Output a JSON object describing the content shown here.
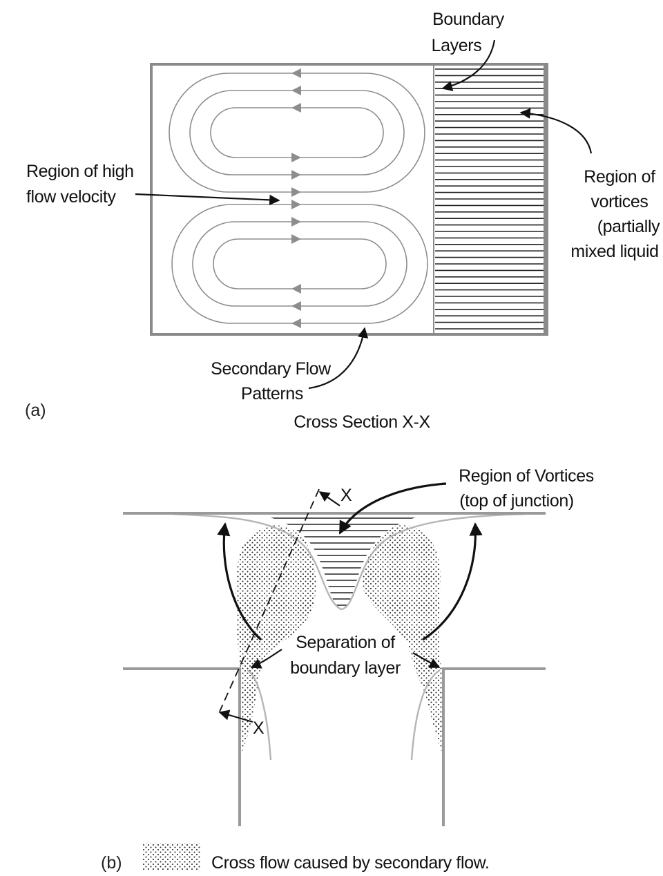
{
  "panel_a": {
    "tag": "(a)",
    "caption": "Cross Section X-X",
    "labels": {
      "boundary_layers": [
        "Boundary",
        "Layers"
      ],
      "high_velocity": [
        "Region of high",
        "flow velocity"
      ],
      "vortices": [
        "Region of",
        "vortices",
        "(partially",
        "mixed liquid"
      ],
      "secondary_flow": [
        "Secondary Flow",
        "Patterns"
      ]
    }
  },
  "panel_b": {
    "tag": "(b)",
    "labels": {
      "vortices_top": [
        "Region of Vortices",
        "(top of junction)"
      ],
      "separation": [
        "Separation of",
        "boundary layer"
      ],
      "section_mark_top": "X",
      "section_mark_bottom": "X"
    },
    "legend": {
      "text": "Cross flow caused by secondary flow."
    }
  },
  "colors": {
    "wall": "#8a8a8a",
    "stream": "#8d8d8d",
    "ink": "#111111"
  }
}
